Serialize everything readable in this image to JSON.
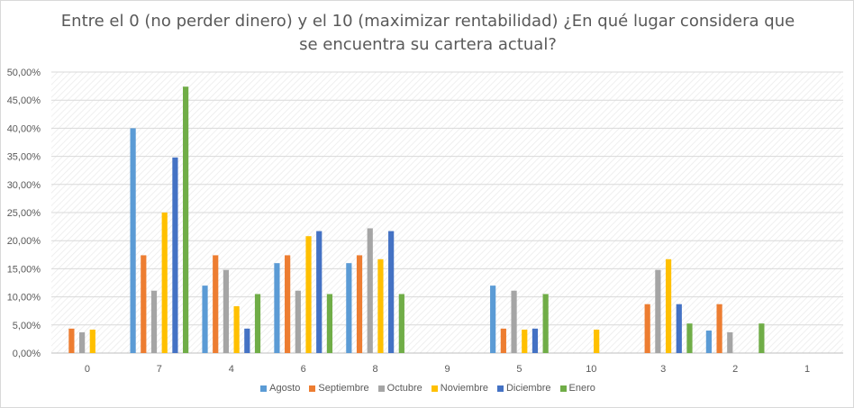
{
  "chart_data": {
    "type": "bar",
    "title_lines": [
      "Entre el 0 (no perder dinero) y el 10 (maximizar rentabilidad) ¿En qué lugar considera que",
      "se encuentra su cartera actual?"
    ],
    "categories": [
      "0",
      "7",
      "4",
      "6",
      "8",
      "9",
      "5",
      "10",
      "3",
      "2",
      "1"
    ],
    "ylim": [
      0,
      50
    ],
    "yticks": [
      "0,00%",
      "5,00%",
      "10,00%",
      "15,00%",
      "20,00%",
      "25,00%",
      "30,00%",
      "35,00%",
      "40,00%",
      "45,00%",
      "50,00%"
    ],
    "grid": true,
    "legend_position": "bottom",
    "series": [
      {
        "name": "Agosto",
        "color": "#5b9bd5",
        "values": [
          0,
          40.0,
          12.0,
          16.0,
          16.0,
          0,
          12.0,
          0,
          0,
          4.0,
          0
        ]
      },
      {
        "name": "Septiembre",
        "color": "#ed7d31",
        "values": [
          4.35,
          17.4,
          17.4,
          17.4,
          17.4,
          0,
          4.35,
          0,
          8.7,
          8.7,
          0
        ]
      },
      {
        "name": "Octubre",
        "color": "#a5a5a5",
        "values": [
          3.7,
          11.1,
          14.8,
          11.1,
          22.2,
          0,
          11.1,
          0,
          14.8,
          3.7,
          0
        ]
      },
      {
        "name": "Noviembre",
        "color": "#ffc000",
        "values": [
          4.17,
          25.0,
          8.33,
          20.8,
          16.7,
          0,
          4.17,
          4.17,
          16.7,
          0,
          0
        ]
      },
      {
        "name": "Diciembre",
        "color": "#4472c4",
        "values": [
          0,
          34.8,
          4.35,
          21.7,
          21.7,
          0,
          4.35,
          0,
          8.7,
          0,
          0
        ]
      },
      {
        "name": "Enero",
        "color": "#70ad47",
        "values": [
          0,
          47.4,
          10.5,
          10.5,
          10.5,
          0,
          10.5,
          0,
          5.26,
          5.26,
          0
        ]
      }
    ]
  }
}
